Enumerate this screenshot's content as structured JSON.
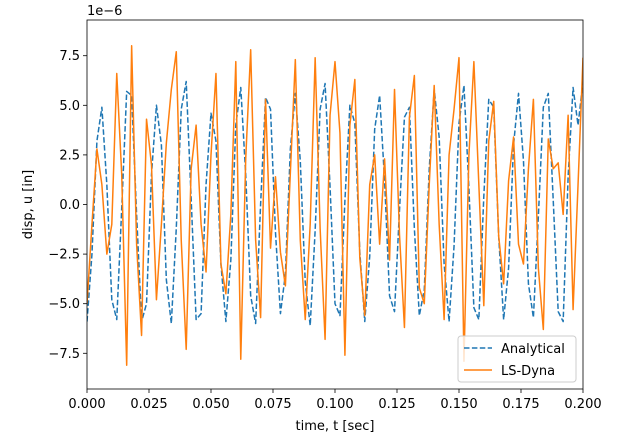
{
  "chart_data": {
    "type": "line",
    "title": "",
    "xlabel": "time, t [sec]",
    "ylabel": "disp, u [in]",
    "offset_label": "1e−6",
    "xlim": [
      0.0,
      0.2
    ],
    "ylim": [
      -9.3,
      9.3
    ],
    "x_ticks": [
      0.0,
      0.025,
      0.05,
      0.075,
      0.1,
      0.125,
      0.15,
      0.175,
      0.2
    ],
    "x_tick_labels": [
      "0.000",
      "0.025",
      "0.050",
      "0.075",
      "0.100",
      "0.125",
      "0.150",
      "0.175",
      "0.200"
    ],
    "y_ticks": [
      -7.5,
      -5.0,
      -2.5,
      0.0,
      2.5,
      5.0,
      7.5
    ],
    "y_tick_labels": [
      "−7.5",
      "−5.0",
      "−2.5",
      "0.0",
      "2.5",
      "5.0",
      "7.5"
    ],
    "grid": false,
    "legend_position": "lower-right",
    "series": [
      {
        "name": "Analytical",
        "color": "#1f77b4",
        "style": "dashed",
        "x": [
          0.0,
          0.002,
          0.004,
          0.006,
          0.008,
          0.01,
          0.012,
          0.014,
          0.016,
          0.018,
          0.02,
          0.022,
          0.024,
          0.026,
          0.028,
          0.03,
          0.032,
          0.034,
          0.036,
          0.038,
          0.04,
          0.042,
          0.044,
          0.046,
          0.048,
          0.05,
          0.052,
          0.054,
          0.056,
          0.058,
          0.06,
          0.062,
          0.064,
          0.066,
          0.068,
          0.07,
          0.072,
          0.074,
          0.076,
          0.078,
          0.08,
          0.082,
          0.084,
          0.086,
          0.088,
          0.09,
          0.092,
          0.094,
          0.096,
          0.098,
          0.1,
          0.102,
          0.104,
          0.106,
          0.108,
          0.11,
          0.112,
          0.114,
          0.116,
          0.118,
          0.12,
          0.122,
          0.124,
          0.126,
          0.128,
          0.13,
          0.132,
          0.134,
          0.136,
          0.138,
          0.14,
          0.142,
          0.144,
          0.146,
          0.148,
          0.15,
          0.152,
          0.154,
          0.156,
          0.158,
          0.16,
          0.162,
          0.164,
          0.166,
          0.168,
          0.17,
          0.172,
          0.174,
          0.176,
          0.178,
          0.18,
          0.182,
          0.184,
          0.186,
          0.188,
          0.19,
          0.192,
          0.194,
          0.196,
          0.198,
          0.2
        ],
        "y": [
          -5.9,
          -2.5,
          3.2,
          4.9,
          1.0,
          -4.8,
          -5.8,
          -0.2,
          5.7,
          5.5,
          -0.5,
          -5.9,
          -5.0,
          1.5,
          5.0,
          3.0,
          -3.8,
          -6.0,
          -1.2,
          4.8,
          6.2,
          0.3,
          -5.8,
          -5.5,
          1.0,
          4.6,
          3.2,
          -3.0,
          -5.9,
          -2.8,
          4.0,
          5.9,
          1.5,
          -4.6,
          -6.0,
          0.0,
          5.4,
          4.8,
          -1.4,
          -5.5,
          -3.5,
          2.8,
          5.6,
          2.2,
          -3.9,
          -6.1,
          -1.3,
          4.8,
          6.1,
          0.9,
          -5.0,
          -5.6,
          0.2,
          5.0,
          4.1,
          -2.4,
          -5.9,
          -2.6,
          3.8,
          5.5,
          1.2,
          -4.6,
          -5.4,
          -0.3,
          4.4,
          4.9,
          -1.2,
          -5.6,
          -4.3,
          1.8,
          5.8,
          3.4,
          -3.0,
          -5.9,
          -2.1,
          4.1,
          6.0,
          0.8,
          -5.2,
          -5.8,
          0.4,
          5.3,
          4.9,
          -1.6,
          -5.8,
          -3.2,
          3.0,
          5.6,
          2.2,
          -4.0,
          -5.7,
          -0.6,
          4.9,
          5.6,
          0.2,
          -5.4,
          -5.9,
          1.4,
          5.9,
          4.0,
          6.2
        ]
      },
      {
        "name": "LS-Dyna",
        "color": "#ff7f0e",
        "style": "solid",
        "x": [
          0.0,
          0.002,
          0.004,
          0.006,
          0.008,
          0.01,
          0.012,
          0.014,
          0.016,
          0.018,
          0.02,
          0.022,
          0.024,
          0.026,
          0.028,
          0.03,
          0.032,
          0.034,
          0.036,
          0.038,
          0.04,
          0.042,
          0.044,
          0.046,
          0.048,
          0.05,
          0.052,
          0.054,
          0.056,
          0.058,
          0.06,
          0.062,
          0.064,
          0.066,
          0.068,
          0.07,
          0.072,
          0.074,
          0.076,
          0.078,
          0.08,
          0.082,
          0.084,
          0.086,
          0.088,
          0.09,
          0.092,
          0.094,
          0.096,
          0.098,
          0.1,
          0.102,
          0.104,
          0.106,
          0.108,
          0.11,
          0.112,
          0.114,
          0.116,
          0.118,
          0.12,
          0.122,
          0.124,
          0.126,
          0.128,
          0.13,
          0.132,
          0.134,
          0.136,
          0.138,
          0.14,
          0.142,
          0.144,
          0.146,
          0.148,
          0.15,
          0.152,
          0.154,
          0.156,
          0.158,
          0.16,
          0.162,
          0.164,
          0.166,
          0.168,
          0.17,
          0.172,
          0.174,
          0.176,
          0.178,
          0.18,
          0.182,
          0.184,
          0.186,
          0.188,
          0.19,
          0.192,
          0.194,
          0.196,
          0.198,
          0.2
        ],
        "y": [
          -5.0,
          -1.0,
          2.8,
          1.0,
          -2.5,
          -1.0,
          6.6,
          1.5,
          -8.1,
          8.0,
          -2.0,
          -6.6,
          4.3,
          2.0,
          -4.8,
          -1.0,
          3.1,
          5.8,
          7.7,
          -1.8,
          -7.3,
          1.8,
          4.0,
          -1.0,
          -3.4,
          2.5,
          6.6,
          -3.0,
          -4.5,
          -0.5,
          7.2,
          -7.8,
          2.3,
          7.8,
          -1.8,
          -5.7,
          5.3,
          -2.2,
          1.4,
          -2.4,
          -4.1,
          1.6,
          7.3,
          -1.8,
          -5.8,
          -1.0,
          7.4,
          -1.2,
          -6.8,
          4.5,
          7.2,
          3.6,
          -7.6,
          4.0,
          6.3,
          -2.7,
          -5.6,
          1.0,
          2.5,
          -2.0,
          2.3,
          -2.8,
          5.8,
          -1.5,
          -6.2,
          4.4,
          6.5,
          -4.2,
          -5.0,
          1.0,
          6.0,
          -1.0,
          -5.8,
          2.5,
          4.8,
          7.4,
          -7.9,
          2.5,
          7.2,
          1.0,
          -5.1,
          3.2,
          5.2,
          -1.6,
          -4.0,
          1.2,
          3.4,
          -2.0,
          -3.0,
          1.8,
          5.3,
          -3.2,
          -6.3,
          3.3,
          1.8,
          2.1,
          -0.5,
          4.5,
          -5.3,
          1.0,
          7.4
        ]
      }
    ]
  }
}
